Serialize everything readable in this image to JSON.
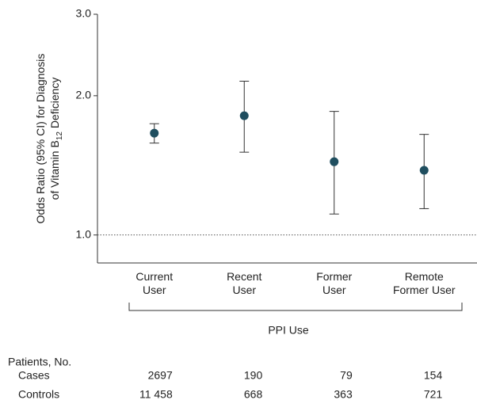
{
  "chart_data": {
    "type": "errorbar",
    "ylabel": [
      [
        {
          "text": "Odds Ratio (95% CI) for Diagnosis"
        }
      ],
      [
        {
          "text": "of Vitamin B"
        },
        {
          "text": "12",
          "sub": true
        },
        {
          "text": " Deficiency"
        }
      ]
    ],
    "categories": [
      "Current\nUser",
      "Recent\nUser",
      "Former\nUser",
      "Remote\nFormer User"
    ],
    "values": [
      1.66,
      1.81,
      1.44,
      1.38
    ],
    "lower": [
      1.58,
      1.51,
      1.11,
      1.14
    ],
    "upper": [
      1.74,
      2.15,
      1.85,
      1.65
    ],
    "color": "#1f4e5f",
    "log_y": true,
    "ylim": [
      0.87,
      3.0
    ],
    "yticks": [
      {
        "value": 1,
        "label": "1.0"
      },
      {
        "value": 2,
        "label": "2.0"
      },
      {
        "value": 3,
        "label": "3.0"
      }
    ],
    "reference_line": 1,
    "group_label": "PPI Use"
  },
  "table": {
    "title": "Patients, No.",
    "rows": [
      {
        "label": "Cases",
        "values": [
          "2697",
          "190",
          "79",
          "154"
        ]
      },
      {
        "label": "Controls",
        "values": [
          "11 458",
          "668",
          "363",
          "721"
        ]
      }
    ]
  }
}
